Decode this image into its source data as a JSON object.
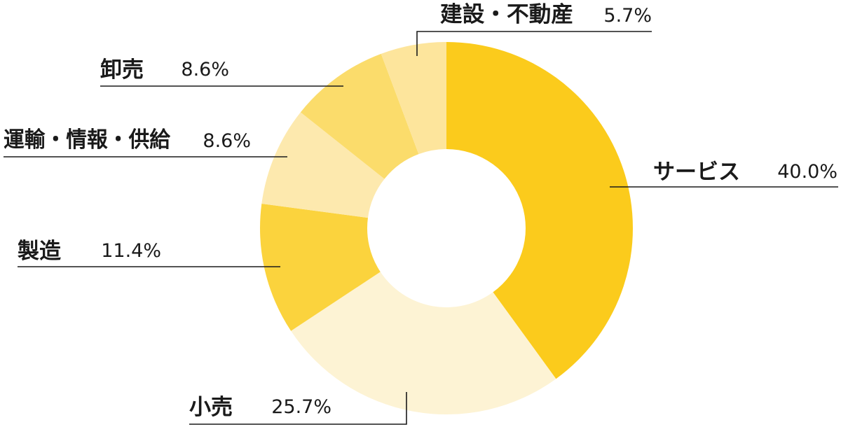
{
  "chart_data": {
    "type": "donut",
    "start_angle_deg": 0,
    "direction": "clockwise",
    "slices": [
      {
        "label": "サービス",
        "value": 40.0,
        "value_label": "40.0%",
        "color": "#fbcb1c"
      },
      {
        "label": "小売",
        "value": 25.7,
        "value_label": "25.7%",
        "color": "#fdf3d4"
      },
      {
        "label": "製造",
        "value": 11.4,
        "value_label": "11.4%",
        "color": "#fbd33d"
      },
      {
        "label": "運輸・情報・供給",
        "value": 8.6,
        "value_label": "8.6%",
        "color": "#fde9ae"
      },
      {
        "label": "卸売",
        "value": 8.6,
        "value_label": "8.6%",
        "color": "#fbdc6b"
      },
      {
        "label": "建設・不動産",
        "value": 5.7,
        "value_label": "5.7%",
        "color": "#fde59c"
      }
    ]
  }
}
